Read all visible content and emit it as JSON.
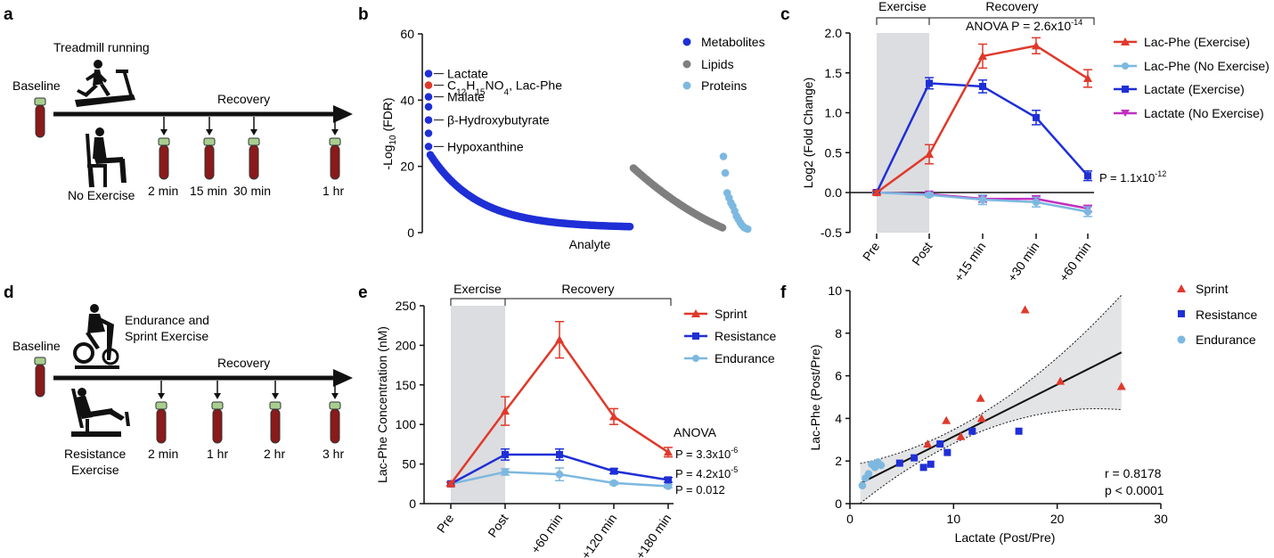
{
  "panel_labels": [
    "a",
    "b",
    "c",
    "d",
    "e",
    "f"
  ],
  "panel_a": {
    "baseline": "Baseline",
    "exercise": "Treadmill running",
    "no_exercise": "No Exercise",
    "recovery": "Recovery",
    "timepoints": [
      "2 min",
      "15 min",
      "30 min",
      "1 hr"
    ]
  },
  "panel_d": {
    "baseline": "Baseline",
    "exercise_line1": "Endurance and",
    "exercise_line2": "Sprint Exercise",
    "resistance_line1": "Resistance",
    "resistance_line2": "Exercise",
    "recovery": "Recovery",
    "timepoints": [
      "2 min",
      "1 hr",
      "2 hr",
      "3 hr"
    ]
  },
  "colors": {
    "metabolites": "#1f2fd6",
    "lipids": "#7f7f7f",
    "proteins": "#7db8e0",
    "lacphe_point": "#e0392b",
    "lac_phe_exercise": "#e0392b",
    "lac_phe_no_exercise": "#7db8e0",
    "lactate_exercise": "#1f2fd6",
    "lactate_no_exercise": "#c030c0",
    "sprint": "#e0392b",
    "resistance": "#1f2fd6",
    "endurance": "#7db8e0",
    "shade": "#dcdde0",
    "tube": "#8b1a1a",
    "cap": "#a8cf8f"
  },
  "chart_data": [
    {
      "id": "b",
      "type": "scatter",
      "xlabel": "Analyte",
      "ylabel": "-Log10 (FDR)",
      "ylim": [
        0,
        60
      ],
      "yticks": [
        "0",
        "20",
        "40",
        "60"
      ],
      "legend": [
        "Metabolites",
        "Lipids",
        "Proteins"
      ],
      "legend_position": "top-right",
      "annotations": [
        {
          "text": "Lactate",
          "y": 48
        },
        {
          "text": "C12H15NO4, Lac-Phe",
          "y": 44.5
        },
        {
          "text": "Malate",
          "y": 41
        },
        {
          "text": "β-Hydroxybutyrate",
          "y": 34
        },
        {
          "text": "Hypoxanthine",
          "y": 26
        }
      ],
      "lac_phe_label": {
        "pre": "C",
        "sub1": "12",
        "mid1": "H",
        "sub2": "15",
        "mid2": "NO",
        "sub3": "4",
        "post": ", Lac-Phe"
      },
      "series": [
        {
          "name": "Metabolites",
          "top_values": [
            48,
            44.5,
            41,
            38,
            34,
            30,
            26
          ],
          "decay_from": 23.5,
          "decay_to": 1.5,
          "count": 130
        },
        {
          "name": "Lipids",
          "decay_from": 19.5,
          "decay_to": 1.5,
          "count": 70
        },
        {
          "name": "Proteins",
          "values": [
            23,
            18,
            12,
            10.5,
            9,
            8,
            6.5,
            5,
            4,
            3,
            2.2,
            1.6,
            1.3,
            1.1
          ]
        }
      ]
    },
    {
      "id": "c",
      "type": "line",
      "categories": [
        "Pre",
        "Post",
        "+15 min",
        "+30 min",
        "+60 min"
      ],
      "ylabel": "Log2 (Fold Change)",
      "ylim": [
        -0.5,
        2.0
      ],
      "yticks": [
        "-0.5",
        "0.0",
        "0.5",
        "1.0",
        "1.5",
        "2.0"
      ],
      "bracket_labels": [
        "Exercise",
        "Recovery"
      ],
      "anova_text": "ANOVA P = 2.6x10",
      "anova_exp": "-14",
      "pvalue_text": "P = 1.1x10",
      "pvalue_exp": "-12",
      "series": [
        {
          "name": "Lac-Phe (Exercise)",
          "values": [
            0,
            0.48,
            1.71,
            1.84,
            1.43
          ],
          "errors": [
            0.02,
            0.12,
            0.15,
            0.1,
            0.11
          ]
        },
        {
          "name": "Lac-Phe (No Exercise)",
          "values": [
            0,
            -0.03,
            -0.09,
            -0.12,
            -0.24
          ],
          "errors": [
            0.01,
            0.02,
            0.06,
            0.06,
            0.06
          ]
        },
        {
          "name": "Lactate (Exercise)",
          "values": [
            0,
            1.37,
            1.33,
            0.94,
            0.21
          ],
          "errors": [
            0.02,
            0.07,
            0.08,
            0.09,
            0.06
          ]
        },
        {
          "name": "Lactate (No Exercise)",
          "values": [
            0,
            -0.02,
            -0.08,
            -0.08,
            -0.2
          ],
          "errors": [
            0.01,
            0.02,
            0.04,
            0.04,
            0.04
          ]
        }
      ]
    },
    {
      "id": "e",
      "type": "line",
      "categories": [
        "Pre",
        "Post",
        "+60 min",
        "+120 min",
        "+180 min"
      ],
      "ylabel": "Lac-Phe Concentration (nM)",
      "ylim": [
        0,
        250
      ],
      "yticks": [
        "0",
        "50",
        "100",
        "150",
        "200",
        "250"
      ],
      "bracket_labels": [
        "Exercise",
        "Recovery"
      ],
      "anova_label": "ANOVA",
      "p_values": [
        {
          "text": "P = 3.3x10",
          "exp": "-6"
        },
        {
          "text": "P = 4.2x10",
          "exp": "-5"
        },
        {
          "text": "P = 0.012",
          "exp": ""
        }
      ],
      "series": [
        {
          "name": "Sprint",
          "values": [
            25,
            117,
            207,
            110,
            65
          ],
          "errors": [
            2,
            18,
            23,
            10,
            6
          ]
        },
        {
          "name": "Resistance",
          "values": [
            25,
            62,
            62,
            41,
            30
          ],
          "errors": [
            2,
            7,
            7,
            3,
            3
          ]
        },
        {
          "name": "Endurance",
          "values": [
            25,
            40,
            37,
            26,
            22
          ],
          "errors": [
            2,
            4,
            8,
            2,
            2
          ]
        }
      ]
    },
    {
      "id": "f",
      "type": "scatter",
      "xlabel": "Lactate (Post/Pre)",
      "ylabel": "Lac-Phe (Post/Pre)",
      "xlim": [
        0,
        30
      ],
      "ylim": [
        0,
        10
      ],
      "xticks": [
        "0",
        "10",
        "20",
        "30"
      ],
      "yticks": [
        "0",
        "2",
        "4",
        "6",
        "8",
        "10"
      ],
      "r_text": "r = 0.8178",
      "p_text": "p < 0.0001",
      "fit": {
        "x": [
          1,
          26.2
        ],
        "y": [
          0.95,
          7.1
        ]
      },
      "series": [
        {
          "name": "Sprint",
          "points": [
            [
              7.5,
              2.8
            ],
            [
              9.3,
              3.9
            ],
            [
              10.7,
              3.15
            ],
            [
              12.7,
              4.0
            ],
            [
              12.6,
              4.95
            ],
            [
              16.9,
              9.1
            ],
            [
              20.3,
              5.75
            ],
            [
              26.2,
              5.5
            ]
          ]
        },
        {
          "name": "Resistance",
          "points": [
            [
              4.8,
              1.9
            ],
            [
              6.2,
              2.15
            ],
            [
              7.1,
              1.7
            ],
            [
              7.8,
              1.85
            ],
            [
              8.7,
              2.8
            ],
            [
              9.4,
              2.4
            ],
            [
              11.8,
              3.4
            ],
            [
              16.3,
              3.4
            ]
          ]
        },
        {
          "name": "Endurance",
          "points": [
            [
              1.2,
              0.85
            ],
            [
              1.5,
              1.2
            ],
            [
              1.8,
              1.4
            ],
            [
              2.1,
              1.85
            ],
            [
              2.4,
              1.7
            ],
            [
              2.7,
              1.95
            ],
            [
              3.0,
              1.8
            ]
          ]
        }
      ]
    }
  ]
}
